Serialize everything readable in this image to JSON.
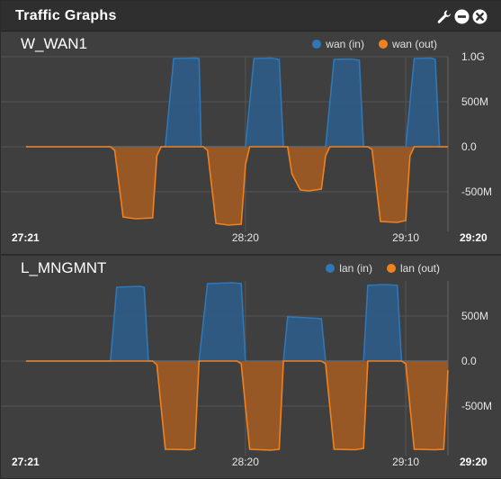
{
  "widget": {
    "title": "Traffic Graphs",
    "tools": {
      "settings_icon": "wrench-icon",
      "minimize_icon": "minus-circle-icon",
      "close_icon": "close-circle-icon"
    }
  },
  "colors": {
    "in": "#2f77b5",
    "out": "#f0811f",
    "in_fill": "#2e5b85",
    "out_fill": "#9c5a24"
  },
  "chart_data": [
    {
      "type": "area",
      "title": "W_WAN1",
      "ylim": [
        -1000,
        1000
      ],
      "y_ticks": [
        {
          "value": 1000,
          "label": "1.0G"
        },
        {
          "value": 500,
          "label": "500M"
        },
        {
          "value": 0,
          "label": "0.0"
        },
        {
          "value": -500,
          "label": "-500M"
        }
      ],
      "x_range": [
        0,
        100
      ],
      "x_ticks": [
        {
          "pos": 0,
          "label": "27:21",
          "bold": true
        },
        {
          "pos": 52,
          "label": "28:20",
          "bold": false
        },
        {
          "pos": 90,
          "label": "29:10",
          "bold": false
        },
        {
          "pos": 100,
          "label": "29:20",
          "bold": true
        }
      ],
      "grid": true,
      "legend_position": "top-right",
      "series": [
        {
          "name": "wan (in)",
          "points": [
            [
              0,
              0
            ],
            [
              31,
              0
            ],
            [
              33,
              0
            ],
            [
              35,
              980
            ],
            [
              40,
              985
            ],
            [
              41,
              980
            ],
            [
              41.5,
              0
            ],
            [
              50,
              0
            ],
            [
              52,
              0
            ],
            [
              54,
              980
            ],
            [
              58,
              985
            ],
            [
              60,
              970
            ],
            [
              61,
              0
            ],
            [
              70,
              0
            ],
            [
              71,
              0
            ],
            [
              73,
              970
            ],
            [
              77,
              975
            ],
            [
              79,
              960
            ],
            [
              80,
              0
            ],
            [
              89,
              0
            ],
            [
              90,
              0
            ],
            [
              92,
              980
            ],
            [
              96,
              985
            ],
            [
              97,
              970
            ],
            [
              98,
              0
            ],
            [
              100,
              0
            ]
          ]
        },
        {
          "name": "wan (out)",
          "points": [
            [
              0,
              0
            ],
            [
              20,
              0
            ],
            [
              21,
              -40
            ],
            [
              23,
              -780
            ],
            [
              26,
              -800
            ],
            [
              30,
              -790
            ],
            [
              31,
              -100
            ],
            [
              32,
              0
            ],
            [
              42,
              0
            ],
            [
              43,
              -40
            ],
            [
              45,
              -850
            ],
            [
              48,
              -870
            ],
            [
              51,
              -860
            ],
            [
              52,
              -200
            ],
            [
              53,
              0
            ],
            [
              62,
              0
            ],
            [
              63,
              -300
            ],
            [
              65,
              -480
            ],
            [
              67,
              -490
            ],
            [
              70,
              -470
            ],
            [
              71,
              -100
            ],
            [
              72,
              0
            ],
            [
              81,
              0
            ],
            [
              82,
              -30
            ],
            [
              84,
              -830
            ],
            [
              88,
              -840
            ],
            [
              90,
              -820
            ],
            [
              91,
              -100
            ],
            [
              92,
              0
            ],
            [
              100,
              0
            ]
          ]
        }
      ]
    },
    {
      "type": "area",
      "title": "L_MNGMNT",
      "ylim": [
        -1000,
        1000
      ],
      "y_ticks": [
        {
          "value": 500,
          "label": "500M"
        },
        {
          "value": 0,
          "label": "0.0"
        },
        {
          "value": -500,
          "label": "-500M"
        }
      ],
      "x_range": [
        0,
        100
      ],
      "x_ticks": [
        {
          "pos": 0,
          "label": "27:21",
          "bold": true
        },
        {
          "pos": 52,
          "label": "28:20",
          "bold": false
        },
        {
          "pos": 90,
          "label": "29:10",
          "bold": false
        },
        {
          "pos": 100,
          "label": "29:20",
          "bold": true
        }
      ],
      "grid": true,
      "legend_position": "top-right",
      "series": [
        {
          "name": "lan (in)",
          "points": [
            [
              0,
              0
            ],
            [
              20,
              0
            ],
            [
              21.5,
              820
            ],
            [
              27,
              830
            ],
            [
              28,
              820
            ],
            [
              29,
              0
            ],
            [
              41,
              0
            ],
            [
              43,
              860
            ],
            [
              49,
              870
            ],
            [
              51,
              860
            ],
            [
              52,
              0
            ],
            [
              61,
              0
            ],
            [
              62,
              490
            ],
            [
              67,
              480
            ],
            [
              70,
              470
            ],
            [
              71,
              0
            ],
            [
              80,
              0
            ],
            [
              81,
              840
            ],
            [
              85,
              850
            ],
            [
              88,
              840
            ],
            [
              89,
              0
            ],
            [
              100,
              0
            ]
          ]
        },
        {
          "name": "lan (out)",
          "points": [
            [
              0,
              0
            ],
            [
              30,
              0
            ],
            [
              31,
              -40
            ],
            [
              33,
              -980
            ],
            [
              39,
              -985
            ],
            [
              40,
              -970
            ],
            [
              41,
              0
            ],
            [
              50,
              0
            ],
            [
              51,
              -30
            ],
            [
              53,
              -980
            ],
            [
              58,
              -990
            ],
            [
              60,
              -980
            ],
            [
              61,
              0
            ],
            [
              70,
              0
            ],
            [
              71,
              -30
            ],
            [
              73,
              -980
            ],
            [
              78,
              -985
            ],
            [
              80,
              -970
            ],
            [
              81,
              0
            ],
            [
              89,
              0
            ],
            [
              90,
              -30
            ],
            [
              92,
              -980
            ],
            [
              97,
              -985
            ],
            [
              99,
              -980
            ],
            [
              100,
              -100
            ]
          ]
        }
      ]
    }
  ]
}
